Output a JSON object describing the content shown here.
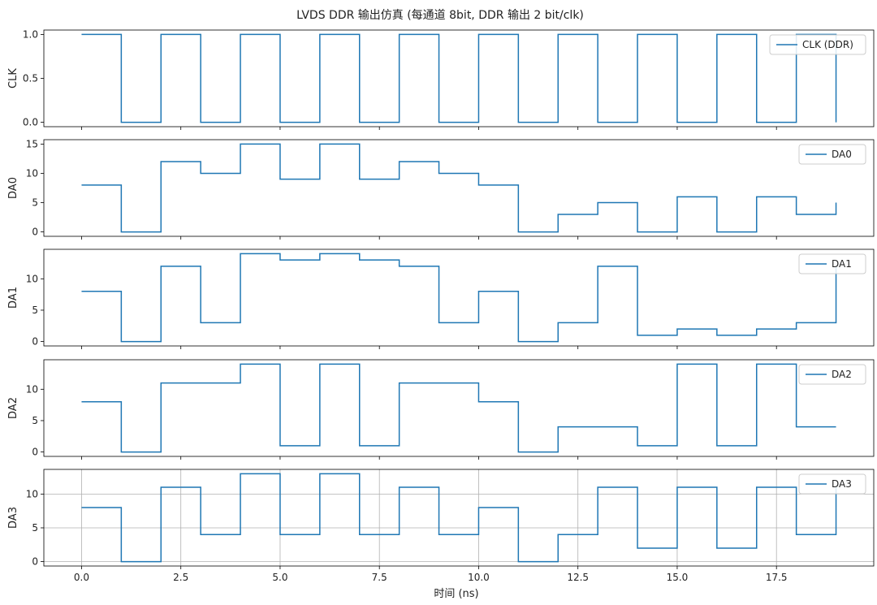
{
  "chart_data": {
    "type": "line",
    "title": "LVDS DDR 输出仿真 (每通道 8bit, DDR 输出 2 bit/clk)",
    "xlabel": "时间 (ns)",
    "xlim": [
      -0.95,
      19.95
    ],
    "xticks": [
      0.0,
      2.5,
      5.0,
      7.5,
      10.0,
      12.5,
      15.0,
      17.5
    ],
    "xtick_labels": [
      "0.0",
      "2.5",
      "5.0",
      "7.5",
      "10.0",
      "12.5",
      "15.0",
      "17.5"
    ],
    "x": [
      0,
      1,
      2,
      3,
      4,
      5,
      6,
      7,
      8,
      9,
      10,
      11,
      12,
      13,
      14,
      15,
      16,
      17,
      18,
      19
    ],
    "color": "#1f77b4",
    "legend_position": "upper right",
    "subplots": [
      {
        "ylabel": "CLK",
        "legend": "CLK (DDR)",
        "ylim": [
          -0.05,
          1.05
        ],
        "yticks": [
          0.0,
          0.5,
          1.0
        ],
        "ytick_labels": [
          "0.0",
          "0.5",
          "1.0"
        ],
        "values": [
          1,
          0,
          1,
          0,
          1,
          0,
          1,
          0,
          1,
          0,
          1,
          0,
          1,
          0,
          1,
          0,
          1,
          0,
          1,
          0
        ],
        "grid": false
      },
      {
        "ylabel": "DA0",
        "legend": "DA0",
        "ylim": [
          -0.75,
          15.75
        ],
        "yticks": [
          0,
          5,
          10,
          15
        ],
        "ytick_labels": [
          "0",
          "5",
          "10",
          "15"
        ],
        "values": [
          8,
          0,
          12,
          10,
          15,
          9,
          15,
          9,
          12,
          10,
          8,
          0,
          3,
          5,
          0,
          6,
          0,
          6,
          3,
          5
        ],
        "grid": false
      },
      {
        "ylabel": "DA1",
        "legend": "DA1",
        "ylim": [
          -0.7,
          14.7
        ],
        "yticks": [
          0,
          5,
          10
        ],
        "ytick_labels": [
          "0",
          "5",
          "10"
        ],
        "values": [
          8,
          0,
          12,
          3,
          14,
          13,
          14,
          13,
          12,
          3,
          8,
          0,
          3,
          12,
          1,
          2,
          1,
          2,
          3,
          12
        ],
        "grid": false
      },
      {
        "ylabel": "DA2",
        "legend": "DA2",
        "ylim": [
          -0.7,
          14.7
        ],
        "yticks": [
          0,
          5,
          10
        ],
        "ytick_labels": [
          "0",
          "5",
          "10"
        ],
        "values": [
          8,
          0,
          11,
          11,
          14,
          1,
          14,
          1,
          11,
          11,
          8,
          0,
          4,
          4,
          1,
          14,
          1,
          14,
          4,
          4
        ],
        "grid": false
      },
      {
        "ylabel": "DA3",
        "legend": "DA3",
        "ylim": [
          -0.65,
          13.65
        ],
        "yticks": [
          0,
          5,
          10
        ],
        "ytick_labels": [
          "0",
          "5",
          "10"
        ],
        "values": [
          8,
          0,
          11,
          4,
          13,
          4,
          13,
          4,
          11,
          4,
          8,
          0,
          4,
          11,
          2,
          11,
          2,
          11,
          4,
          11
        ],
        "grid": true
      }
    ]
  }
}
